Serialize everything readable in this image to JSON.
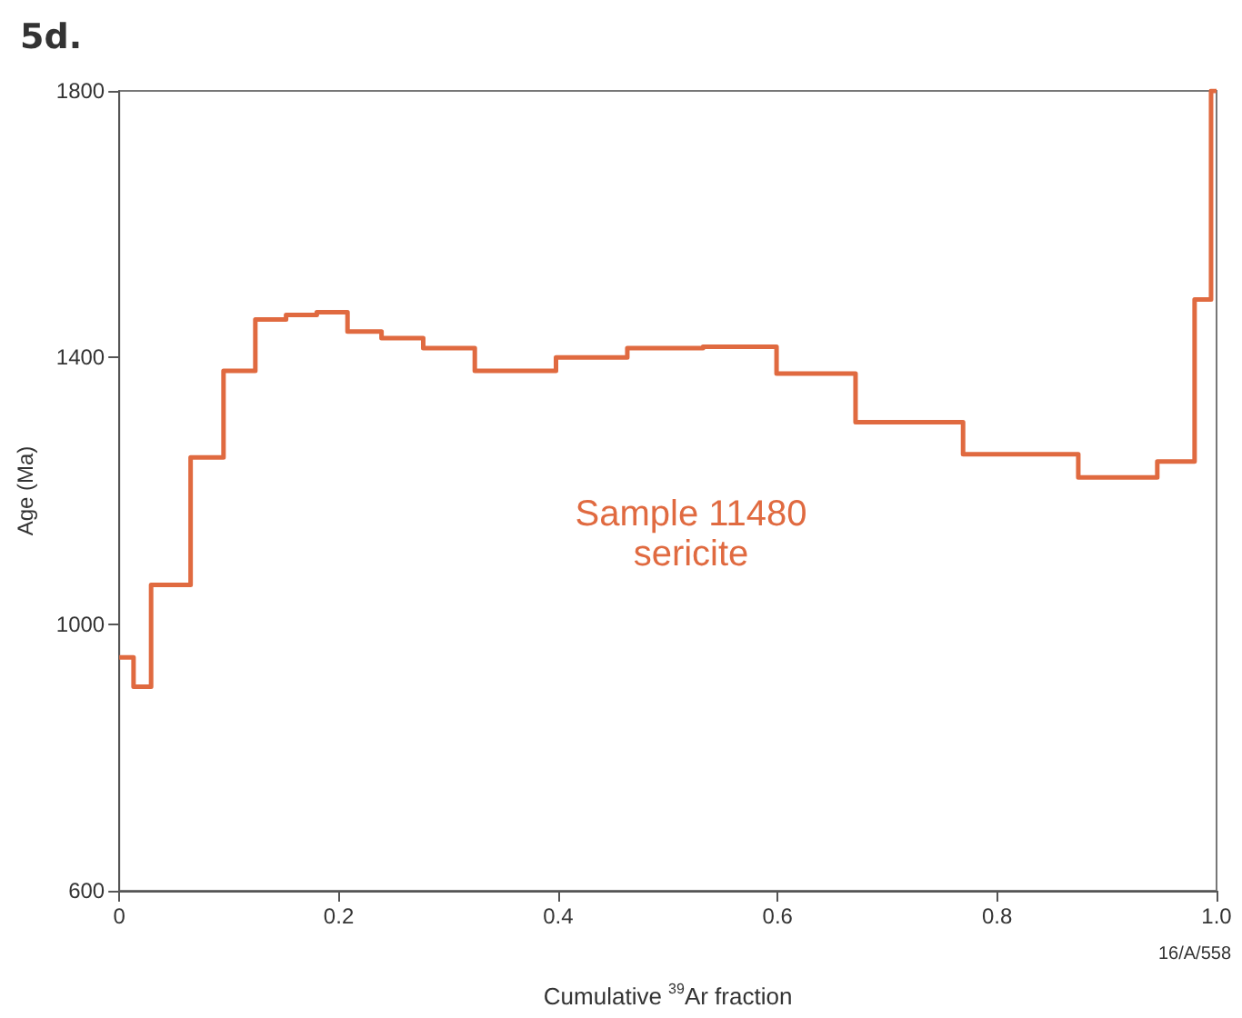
{
  "chart_data": {
    "type": "step",
    "title": "5d.",
    "xlabel": "Cumulative $^{39}$Ar fraction",
    "ylabel": "Age (Ma)",
    "annotations": [
      "Sample 11480\nsericite",
      "16/A/558"
    ],
    "x": [
      0,
      0.013,
      0.029,
      0.065,
      0.095,
      0.124,
      0.152,
      0.18,
      0.208,
      0.239,
      0.277,
      0.324,
      0.398,
      0.463,
      0.532,
      0.599,
      0.671,
      0.769,
      0.874,
      0.946,
      0.98,
      0.995,
      1.0
    ],
    "series": [
      {
        "color": "#e06a40",
        "values": [
          950,
          906,
          1059,
          1250,
          1380,
          1457,
          1464,
          1468,
          1439,
          1429,
          1414,
          1380,
          1400,
          1414,
          1416,
          1376,
          1303,
          1255,
          1220,
          1244,
          1487,
          1800,
          1800
        ]
      }
    ],
    "xlim": [
      0,
      1.0
    ],
    "xticks": [
      0,
      0.2,
      0.4,
      0.6,
      0.8,
      {
        "value": 1.0,
        "label": "1.0"
      }
    ],
    "ylim": [
      600,
      1800
    ],
    "yticks": [
      600,
      1000,
      1400,
      1800
    ],
    "grid": false,
    "marker": "none",
    "line_style": "solid"
  }
}
